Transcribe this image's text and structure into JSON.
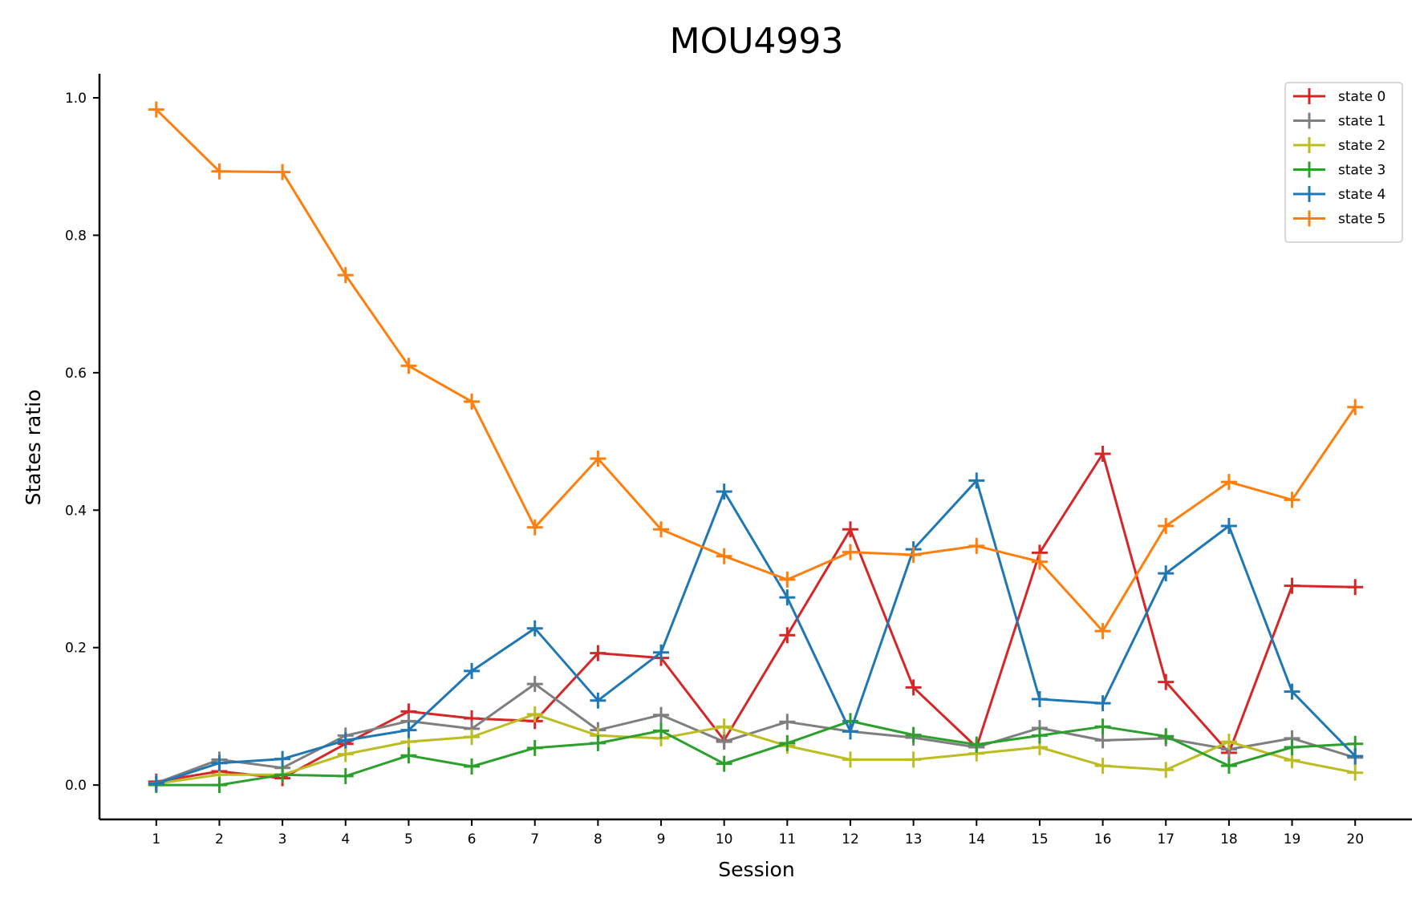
{
  "chart_data": {
    "type": "line",
    "title": "MOU4993",
    "xlabel": "Session",
    "ylabel": "States ratio",
    "x": [
      1,
      2,
      3,
      4,
      5,
      6,
      7,
      8,
      9,
      10,
      11,
      12,
      13,
      14,
      15,
      16,
      17,
      18,
      19,
      20
    ],
    "xlim": [
      0.1,
      20.9
    ],
    "ylim": [
      -0.05,
      1.035
    ],
    "yticks": [
      0.0,
      0.2,
      0.4,
      0.6,
      0.8,
      1.0
    ],
    "ytick_labels": [
      "0.0",
      "0.2",
      "0.4",
      "0.6",
      "0.8",
      "1.0"
    ],
    "xtick_labels": [
      "1",
      "2",
      "3",
      "4",
      "5",
      "6",
      "7",
      "8",
      "9",
      "10",
      "11",
      "12",
      "13",
      "14",
      "15",
      "16",
      "17",
      "18",
      "19",
      "20"
    ],
    "grid": false,
    "legend_position": "top-right",
    "marker": "plus",
    "series": [
      {
        "name": "state 0",
        "color": "#d62728",
        "values": [
          0.005,
          0.02,
          0.01,
          0.06,
          0.107,
          0.097,
          0.093,
          0.192,
          0.185,
          0.065,
          0.218,
          0.372,
          0.142,
          0.055,
          0.338,
          0.482,
          0.15,
          0.047,
          0.29,
          0.288
        ]
      },
      {
        "name": "state 1",
        "color": "#7f7f7f",
        "values": [
          0.003,
          0.037,
          0.025,
          0.072,
          0.093,
          0.082,
          0.147,
          0.08,
          0.102,
          0.063,
          0.092,
          0.078,
          0.069,
          0.055,
          0.083,
          0.065,
          0.068,
          0.052,
          0.068,
          0.04
        ]
      },
      {
        "name": "state 2",
        "color": "#bcbd22",
        "values": [
          0.002,
          0.015,
          0.015,
          0.045,
          0.063,
          0.07,
          0.103,
          0.072,
          0.068,
          0.085,
          0.057,
          0.037,
          0.037,
          0.046,
          0.055,
          0.028,
          0.022,
          0.063,
          0.036,
          0.018
        ]
      },
      {
        "name": "state 3",
        "color": "#2ca02c",
        "values": [
          0.0,
          0.0,
          0.015,
          0.013,
          0.043,
          0.027,
          0.054,
          0.061,
          0.079,
          0.031,
          0.061,
          0.093,
          0.073,
          0.059,
          0.072,
          0.085,
          0.071,
          0.028,
          0.055,
          0.06
        ]
      },
      {
        "name": "state 4",
        "color": "#1f77b4",
        "values": [
          0.002,
          0.032,
          0.038,
          0.065,
          0.08,
          0.166,
          0.228,
          0.123,
          0.193,
          0.427,
          0.273,
          0.078,
          0.343,
          0.443,
          0.125,
          0.119,
          0.308,
          0.377,
          0.136,
          0.042
        ]
      },
      {
        "name": "state 5",
        "color": "#ff7f0e",
        "values": [
          0.983,
          0.893,
          0.892,
          0.742,
          0.61,
          0.558,
          0.375,
          0.475,
          0.372,
          0.333,
          0.299,
          0.339,
          0.335,
          0.348,
          0.325,
          0.224,
          0.377,
          0.441,
          0.415,
          0.55
        ]
      }
    ]
  }
}
